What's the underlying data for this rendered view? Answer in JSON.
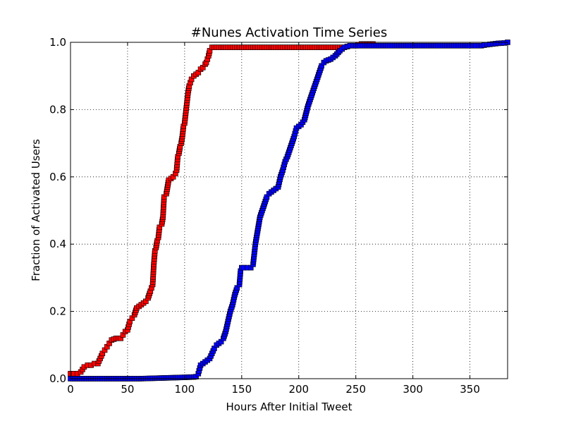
{
  "chart_data": {
    "type": "line",
    "title": "#Nunes Activation Time Series",
    "xlabel": "Hours After Initial Tweet",
    "ylabel": "Fraction of Activated Users",
    "xlim": [
      0,
      383
    ],
    "ylim": [
      0.0,
      1.0
    ],
    "xticks": [
      0,
      50,
      100,
      150,
      200,
      250,
      300,
      350
    ],
    "xtick_labels": [
      "0",
      "50",
      "100",
      "150",
      "200",
      "250",
      "300",
      "350"
    ],
    "yticks": [
      0.0,
      0.2,
      0.4,
      0.6,
      0.8,
      1.0
    ],
    "ytick_labels": [
      "0.0",
      "0.2",
      "0.4",
      "0.6",
      "0.8",
      "1.0"
    ],
    "grid": true,
    "grid_style": "dotted",
    "series": [
      {
        "color": "#ff0000",
        "marker": "square",
        "x": [
          0,
          3,
          6,
          9,
          12,
          15,
          18,
          21,
          24,
          26,
          28,
          30,
          32,
          34,
          36,
          40,
          44,
          46,
          48,
          50,
          52,
          54,
          56,
          58,
          60,
          62,
          64,
          66,
          68,
          70,
          71,
          72,
          73,
          74,
          75,
          76,
          77,
          78,
          80,
          81,
          82,
          84,
          86,
          88,
          90,
          92,
          93,
          94,
          95,
          96,
          97,
          98,
          99,
          100,
          101,
          102,
          103,
          104,
          105,
          106,
          108,
          110,
          112,
          114,
          116,
          118,
          119,
          120,
          121,
          122,
          124,
          126,
          130,
          140,
          150,
          170,
          190,
          210,
          230,
          240,
          245,
          250,
          255,
          260,
          265
        ],
        "y": [
          0.015,
          0.015,
          0.015,
          0.02,
          0.035,
          0.04,
          0.04,
          0.045,
          0.045,
          0.06,
          0.075,
          0.085,
          0.095,
          0.105,
          0.115,
          0.12,
          0.12,
          0.13,
          0.14,
          0.145,
          0.17,
          0.18,
          0.19,
          0.21,
          0.215,
          0.22,
          0.225,
          0.23,
          0.24,
          0.26,
          0.27,
          0.28,
          0.34,
          0.38,
          0.39,
          0.41,
          0.42,
          0.45,
          0.46,
          0.48,
          0.54,
          0.55,
          0.59,
          0.595,
          0.6,
          0.61,
          0.62,
          0.66,
          0.67,
          0.69,
          0.7,
          0.72,
          0.75,
          0.76,
          0.79,
          0.82,
          0.85,
          0.87,
          0.88,
          0.89,
          0.9,
          0.905,
          0.91,
          0.92,
          0.925,
          0.935,
          0.94,
          0.95,
          0.96,
          0.975,
          0.985,
          0.985,
          0.985,
          0.985,
          0.985,
          0.985,
          0.985,
          0.985,
          0.985,
          0.985,
          0.99,
          0.99,
          0.995,
          0.995,
          0.995
        ]
      },
      {
        "color": "#0000ff",
        "marker": "square",
        "x": [
          0,
          20,
          40,
          60,
          80,
          100,
          108,
          110,
          112,
          114,
          116,
          118,
          120,
          122,
          124,
          126,
          128,
          130,
          132,
          134,
          136,
          138,
          140,
          142,
          144,
          146,
          148,
          149,
          150,
          152,
          155,
          158,
          160,
          161,
          162,
          163,
          164,
          165,
          166,
          168,
          170,
          172,
          174,
          176,
          178,
          180,
          182,
          184,
          186,
          188,
          190,
          192,
          194,
          196,
          198,
          200,
          202,
          205,
          208,
          210,
          212,
          214,
          216,
          218,
          220,
          222,
          224,
          228,
          232,
          236,
          240,
          245,
          250,
          260,
          280,
          300,
          320,
          340,
          350,
          355,
          360,
          365,
          370,
          375,
          380,
          383
        ],
        "y": [
          0.0,
          0.0,
          0.0,
          0.0,
          0.002,
          0.004,
          0.005,
          0.006,
          0.015,
          0.04,
          0.045,
          0.05,
          0.055,
          0.06,
          0.075,
          0.09,
          0.1,
          0.105,
          0.11,
          0.12,
          0.14,
          0.17,
          0.2,
          0.22,
          0.25,
          0.27,
          0.28,
          0.32,
          0.33,
          0.33,
          0.33,
          0.33,
          0.34,
          0.37,
          0.4,
          0.42,
          0.44,
          0.46,
          0.48,
          0.5,
          0.52,
          0.54,
          0.55,
          0.555,
          0.56,
          0.565,
          0.57,
          0.6,
          0.62,
          0.645,
          0.66,
          0.68,
          0.7,
          0.72,
          0.745,
          0.75,
          0.755,
          0.77,
          0.81,
          0.83,
          0.85,
          0.87,
          0.89,
          0.91,
          0.93,
          0.94,
          0.945,
          0.95,
          0.96,
          0.975,
          0.985,
          0.99,
          0.99,
          0.99,
          0.99,
          0.99,
          0.99,
          0.99,
          0.99,
          0.99,
          0.99,
          0.993,
          0.995,
          0.997,
          0.998,
          1.0
        ]
      }
    ]
  }
}
